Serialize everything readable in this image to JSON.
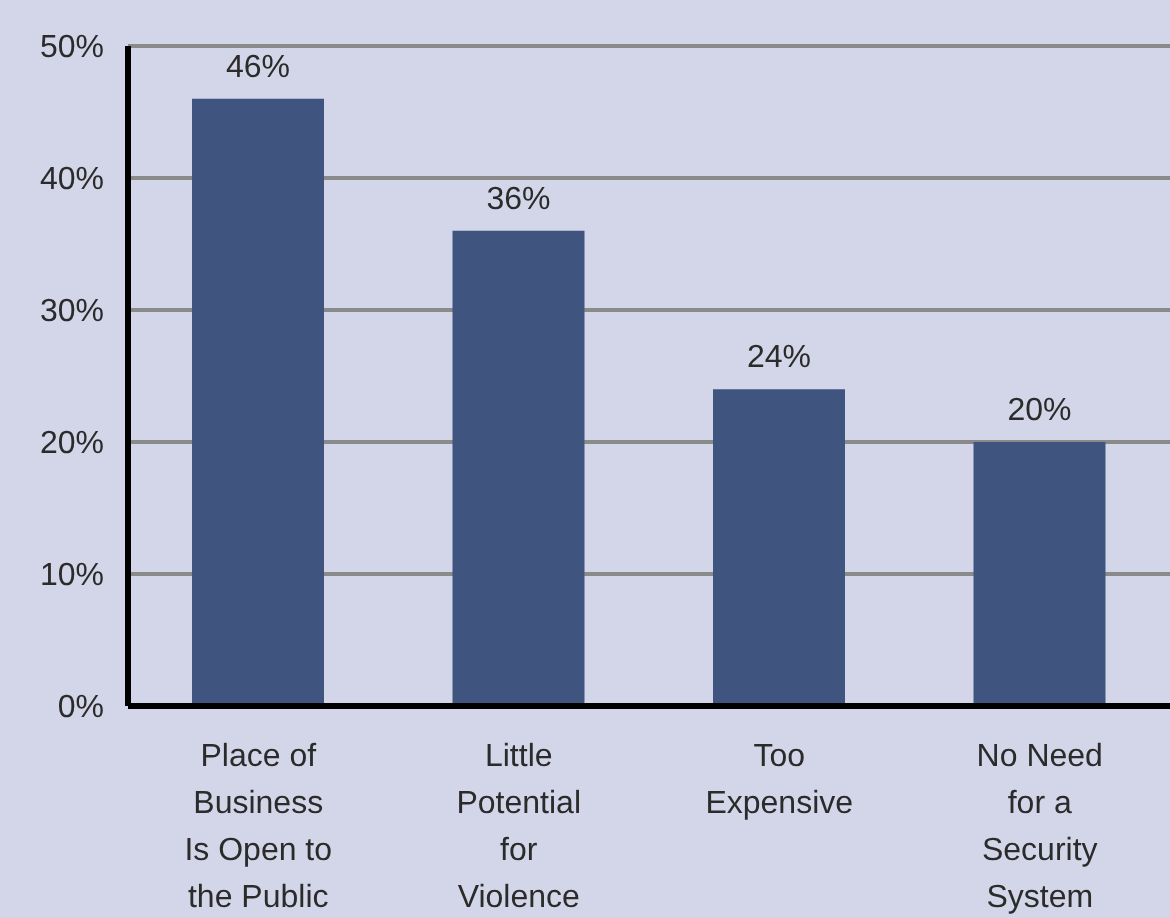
{
  "chart_data": {
    "type": "bar",
    "categories": [
      "Place of Business Is Open to the Public",
      "Little Potential for Violence",
      "Too Expensive",
      "No Need for a Security System"
    ],
    "values": [
      46,
      36,
      24,
      20
    ],
    "color": "#3f5580",
    "ylim": [
      0,
      50
    ],
    "yticks": [
      {
        "value": 0,
        "label": "0%"
      },
      {
        "value": 10,
        "label": "10%"
      },
      {
        "value": 20,
        "label": "20%"
      },
      {
        "value": 30,
        "label": "30%"
      },
      {
        "value": 40,
        "label": "40%"
      },
      {
        "value": 50,
        "label": "50%"
      }
    ],
    "grid": "y",
    "value_labels": [
      "46%",
      "36%",
      "24%",
      "20%"
    ]
  }
}
